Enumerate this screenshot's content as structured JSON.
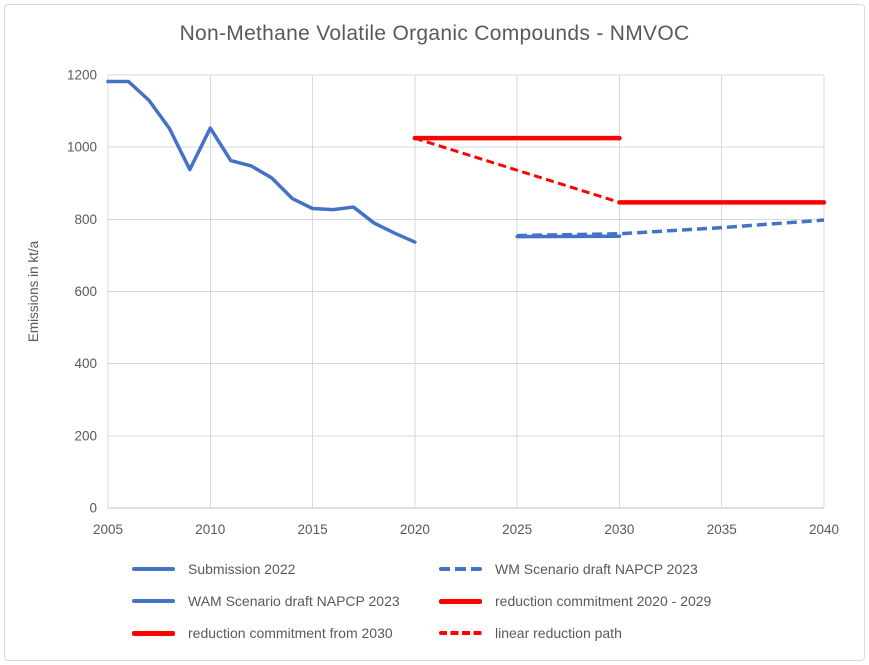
{
  "chart_data": {
    "type": "line",
    "title": "Non-Methane Volatile Organic Compounds - NMVOC",
    "xlabel": "",
    "ylabel": "Emissions in kt/a",
    "xlim": [
      2005,
      2040
    ],
    "ylim": [
      0,
      1200
    ],
    "x_ticks": [
      2005,
      2010,
      2015,
      2020,
      2025,
      2030,
      2035,
      2040
    ],
    "y_ticks": [
      0,
      200,
      400,
      600,
      800,
      1000,
      1200
    ],
    "grid": true,
    "legend_position": "bottom",
    "series": [
      {
        "name": "Submission 2022",
        "style": "solid",
        "color": "#4472C4",
        "width": 3.5,
        "x": [
          2005,
          2006,
          2007,
          2008,
          2009,
          2010,
          2011,
          2012,
          2013,
          2014,
          2015,
          2016,
          2017,
          2018,
          2019,
          2020
        ],
        "y": [
          1182,
          1182,
          1130,
          1052,
          938,
          1053,
          963,
          948,
          915,
          858,
          830,
          827,
          834,
          790,
          762,
          737
        ]
      },
      {
        "name": "WM Scenario draft NAPCP 2023",
        "style": "dashed",
        "color": "#4472C4",
        "width": 3.5,
        "x": [
          2025,
          2030,
          2035,
          2040
        ],
        "y": [
          755,
          760,
          777,
          798
        ]
      },
      {
        "name": "WAM Scenario draft NAPCP 2023",
        "style": "solid",
        "color": "#4472C4",
        "width": 3.5,
        "x": [
          2025,
          2030
        ],
        "y": [
          752,
          753
        ]
      },
      {
        "name": "reduction commitment 2020 - 2029",
        "style": "solid",
        "color": "#FF0000",
        "width": 4.5,
        "x": [
          2020,
          2030
        ],
        "y": [
          1025,
          1025
        ]
      },
      {
        "name": "reduction commitment from 2030",
        "style": "solid",
        "color": "#FF0000",
        "width": 4.5,
        "x": [
          2030,
          2040
        ],
        "y": [
          847,
          847
        ]
      },
      {
        "name": "linear reduction path",
        "style": "dashed",
        "color": "#FF0000",
        "width": 3,
        "x": [
          2020,
          2030
        ],
        "y": [
          1025,
          847
        ]
      }
    ]
  },
  "colors": {
    "text": "#595959",
    "gridline": "#D9D9D9",
    "axis_line": "#BFBFBF",
    "series_blue": "#4472C4",
    "series_red": "#FF0000",
    "frame_border": "#D9D9D9",
    "background": "#FFFFFF"
  }
}
